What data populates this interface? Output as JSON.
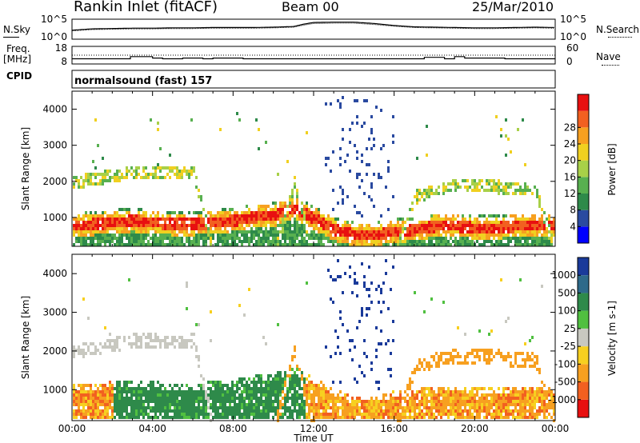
{
  "header": {
    "title": "Rankin Inlet (fitACF)",
    "beam": "Beam 00",
    "date": "25/Mar/2010"
  },
  "side_labels": {
    "n_sky": "N.Sky",
    "n_search": "N.Search",
    "freq_line1": "Freq.",
    "freq_line2": "[MHz]",
    "nave": "Nave",
    "cpid": "CPID"
  },
  "cpid_text": "normalsound (fast) 157",
  "chart_data": [
    {
      "type": "line",
      "name": "noise-panel",
      "left_ticks": [
        "10^5",
        "10^0"
      ],
      "right_ticks": [
        "10^5",
        "10^0"
      ],
      "x": [
        0,
        1,
        2,
        3,
        4,
        5,
        6,
        7,
        8,
        9,
        10,
        11,
        11.5,
        12,
        13,
        14,
        15,
        16,
        17,
        18,
        19,
        20,
        21,
        22,
        23,
        24
      ],
      "series": [
        {
          "values": [
            2.2,
            2.6,
            2.7,
            2.8,
            2.8,
            2.9,
            2.9,
            3.0,
            3.0,
            3.0,
            3.1,
            3.3,
            4.0,
            4.5,
            4.6,
            4.6,
            4.2,
            3.6,
            3.2,
            3.1,
            3.0,
            2.9,
            2.9,
            3.0,
            3.1,
            3.0
          ]
        },
        {
          "values": [
            2.0,
            2.4,
            2.5,
            2.6,
            2.6,
            2.7,
            2.7,
            2.8,
            2.8,
            2.8,
            2.9,
            3.1,
            3.7,
            4.2,
            4.3,
            4.3,
            3.9,
            3.4,
            3.0,
            2.9,
            2.8,
            2.7,
            2.7,
            2.8,
            2.9,
            2.8
          ]
        }
      ],
      "ylim": [
        0,
        5
      ]
    },
    {
      "type": "line",
      "name": "frequency-panel",
      "left_ticks": [
        "18",
        "8"
      ],
      "right_ticks": [
        "60",
        "0"
      ],
      "x": [
        0,
        2.6,
        2.9,
        4.0,
        4.5,
        5.5,
        6.5,
        7.0,
        8.5,
        11.5,
        13.5,
        16.0,
        17.5,
        18.5,
        19.0,
        19.5,
        21.5,
        24
      ],
      "series": [
        {
          "values": [
            10.5,
            10.5,
            12.0,
            11.0,
            10.5,
            11.0,
            10.5,
            11.0,
            10.5,
            10.5,
            10.5,
            10.5,
            11.5,
            10.5,
            12.0,
            11.0,
            10.5,
            10.5
          ]
        },
        {
          "values": [
            13.0,
            13.0,
            13.0,
            13.0,
            13.0,
            13.0,
            13.0,
            13.0,
            13.0,
            13.0,
            13.0,
            13.0,
            13.0,
            13.0,
            13.0,
            13.0,
            13.0,
            13.0
          ]
        }
      ],
      "ylim": [
        8,
        18
      ]
    },
    {
      "type": "heatmap",
      "name": "power-panel",
      "ylabel": "Slant Range [km]",
      "ylim": [
        200,
        4500
      ],
      "yticks": [
        1000,
        2000,
        3000,
        4000
      ],
      "colorbar": {
        "label": "Power [dB]",
        "ticks": [
          "4",
          "8",
          "12",
          "16",
          "20",
          "24",
          "28"
        ],
        "colors": [
          "#0000ff",
          "#2a4aa0",
          "#2e8a4a",
          "#58b050",
          "#a8d048",
          "#f0d020",
          "#f7a020",
          "#f26020",
          "#e81010"
        ]
      },
      "x": [
        0,
        1,
        2,
        3,
        4,
        5,
        6,
        7,
        8,
        9,
        10,
        11,
        12,
        13,
        14,
        15,
        16,
        17,
        18,
        19,
        20,
        21,
        22,
        23,
        24
      ],
      "series": [
        {
          "name": "near-range-band",
          "values": [
            800,
            850,
            900,
            950,
            900,
            850,
            850,
            900,
            950,
            1050,
            1100,
            1300,
            1000,
            700,
            550,
            550,
            650,
            700,
            800,
            800,
            750,
            750,
            800,
            800,
            800
          ]
        },
        {
          "name": "upper-band",
          "values": [
            2000,
            2100,
            2200,
            2300,
            2300,
            2250,
            2300,
            0,
            0,
            0,
            0,
            2000,
            0,
            0,
            0,
            0,
            0,
            1600,
            1800,
            1900,
            1900,
            1900,
            1800,
            1800,
            0
          ]
        }
      ]
    },
    {
      "type": "heatmap",
      "name": "velocity-panel",
      "ylabel": "Slant Range [km]",
      "xlabel": "Time UT",
      "ylim": [
        200,
        4500
      ],
      "yticks": [
        1000,
        2000,
        3000,
        4000
      ],
      "xticks": [
        "00:00",
        "04:00",
        "08:00",
        "12:00",
        "16:00",
        "20:00",
        "00:00"
      ],
      "colorbar": {
        "label": "Velocity [m s-1]",
        "ticks": [
          "1000",
          "500",
          "100",
          "25",
          "-25",
          "-100",
          "-500",
          "-1000"
        ],
        "colors": [
          "#1a3a9a",
          "#2e6a8a",
          "#2e8a4a",
          "#50c040",
          "#c8c8c0",
          "#f7d020",
          "#f7a020",
          "#f26020",
          "#e81010"
        ]
      },
      "x": [
        0,
        1,
        2,
        3,
        4,
        5,
        6,
        7,
        8,
        9,
        10,
        11,
        12,
        13,
        14,
        15,
        16,
        17,
        18,
        19,
        20,
        21,
        22,
        23,
        24
      ],
      "series": [
        {
          "name": "near-range-band",
          "values": [
            800,
            850,
            900,
            950,
            900,
            850,
            850,
            900,
            950,
            1050,
            1100,
            1300,
            1000,
            700,
            550,
            550,
            650,
            700,
            800,
            800,
            750,
            750,
            800,
            800,
            800
          ]
        },
        {
          "name": "upper-band",
          "values": [
            2000,
            2100,
            2200,
            2300,
            2300,
            2250,
            2300,
            0,
            0,
            0,
            0,
            2000,
            0,
            0,
            0,
            0,
            0,
            1600,
            1800,
            1900,
            1900,
            1900,
            1800,
            1800,
            0
          ]
        }
      ]
    }
  ]
}
